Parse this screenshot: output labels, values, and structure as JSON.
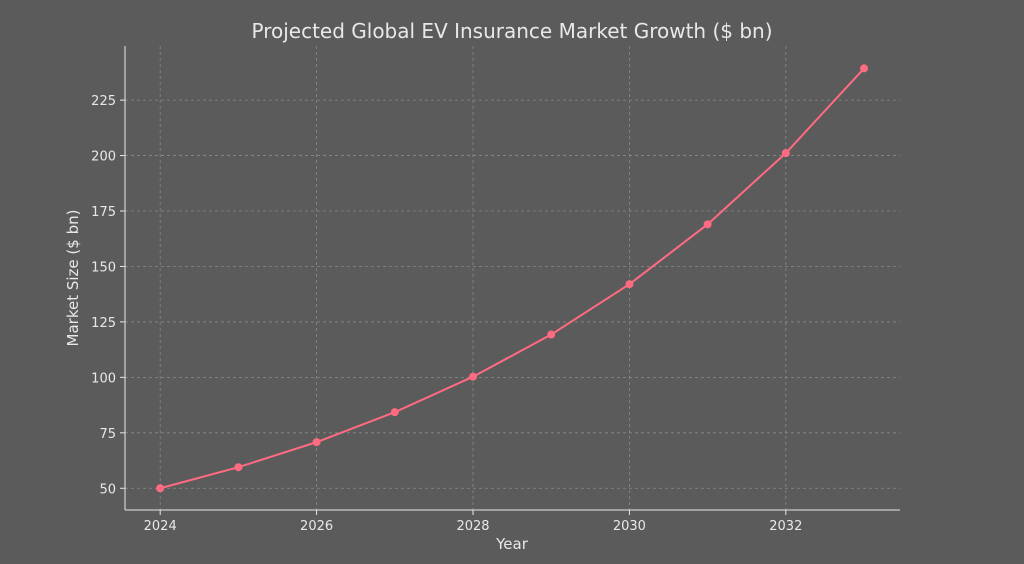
{
  "chart_data": {
    "type": "line",
    "title": "Projected Global EV Insurance Market Growth ($ bn)",
    "xlabel": "Year",
    "ylabel": "Market Size ($ bn)",
    "x": [
      2024,
      2025,
      2026,
      2027,
      2028,
      2029,
      2030,
      2031,
      2032,
      2033
    ],
    "series": [
      {
        "values": [
          50,
          59.5,
          70.8,
          84.3,
          100.3,
          119.3,
          142.0,
          169.0,
          201.1,
          239.3
        ]
      }
    ],
    "xticks": [
      2024,
      2026,
      2028,
      2030,
      2032
    ],
    "yticks": [
      50,
      75,
      100,
      125,
      150,
      175,
      200,
      225
    ],
    "xlim": [
      2023.55,
      2033.46
    ],
    "ylim": [
      40.2,
      249.4
    ],
    "grid": true,
    "markers": true,
    "colors": {
      "background": "#5b5b5b",
      "line": "#ff6b81",
      "text": "#e8e8e8",
      "grid": "#8a8a8a",
      "axis": "#e8e8e8"
    }
  }
}
